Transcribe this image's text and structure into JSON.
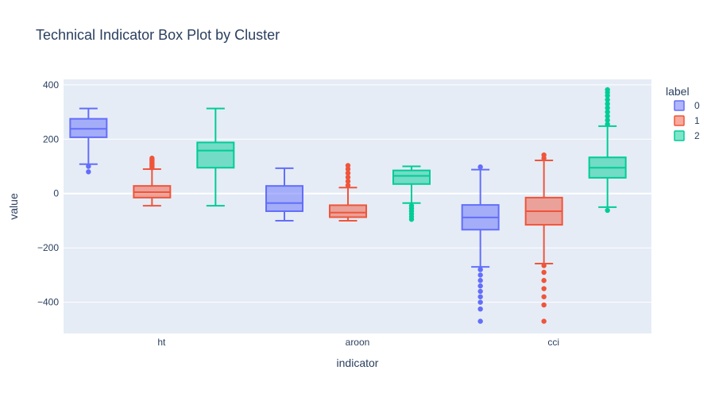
{
  "chart_data": {
    "type": "box",
    "title": "Technical Indicator Box Plot by Cluster",
    "xlabel": "indicator",
    "ylabel": "value",
    "categories": [
      "ht",
      "aroon",
      "cci"
    ],
    "ylim": [
      -515,
      420
    ],
    "yticks": [
      400,
      200,
      0,
      -200,
      -400
    ],
    "ytick_labels": [
      "400",
      "200",
      "0",
      "−200",
      "−400"
    ],
    "legend": {
      "title": "label",
      "position": "top-right"
    },
    "colors": {
      "plot_bg": "#e5ecf6",
      "grid": "#ffffff"
    },
    "series": [
      {
        "name": "0",
        "color": "#636efa",
        "fill": "rgba(99,110,250,0.5)",
        "boxes": [
          {
            "category": "ht",
            "min": 108,
            "q1": 207,
            "median": 238,
            "q3": 275,
            "max": 313,
            "outliers": [
              100,
              80
            ]
          },
          {
            "category": "aroon",
            "min": -100,
            "q1": -65,
            "median": -35,
            "q3": 28,
            "max": 93,
            "outliers": []
          },
          {
            "category": "cci",
            "min": -270,
            "q1": -133,
            "median": -88,
            "q3": -42,
            "max": 88,
            "outliers": [
              98,
              -280,
              -300,
              -320,
              -340,
              -360,
              -380,
              -400,
              -425,
              -470
            ]
          }
        ]
      },
      {
        "name": "1",
        "color": "#EF553B",
        "fill": "rgba(239,85,59,0.5)",
        "boxes": [
          {
            "category": "ht",
            "min": -45,
            "q1": -15,
            "median": 5,
            "q3": 28,
            "max": 90,
            "outliers": [
              95,
              100,
              105,
              110,
              115,
              120,
              125,
              130
            ]
          },
          {
            "category": "aroon",
            "min": -100,
            "q1": -87,
            "median": -70,
            "q3": -43,
            "max": 22,
            "outliers": [
              30,
              45,
              60,
              75,
              90,
              103
            ]
          },
          {
            "category": "cci",
            "min": -258,
            "q1": -115,
            "median": -65,
            "q3": -15,
            "max": 122,
            "outliers": [
              130,
              142,
              -265,
              -290,
              -320,
              -350,
              -380,
              -410,
              -470
            ]
          }
        ]
      },
      {
        "name": "2",
        "color": "#00cc96",
        "fill": "rgba(0,204,150,0.5)",
        "boxes": [
          {
            "category": "ht",
            "min": -45,
            "q1": 95,
            "median": 158,
            "q3": 188,
            "max": 313,
            "outliers": []
          },
          {
            "category": "aroon",
            "min": -35,
            "q1": 35,
            "median": 65,
            "q3": 85,
            "max": 100,
            "outliers": [
              -45,
              -55,
              -65,
              -75,
              -85,
              -95
            ]
          },
          {
            "category": "cci",
            "min": -50,
            "q1": 58,
            "median": 95,
            "q3": 133,
            "max": 248,
            "outliers": [
              -62,
              255,
              270,
              285,
              300,
              315,
              330,
              345,
              360,
              372,
              382
            ]
          }
        ]
      }
    ]
  }
}
